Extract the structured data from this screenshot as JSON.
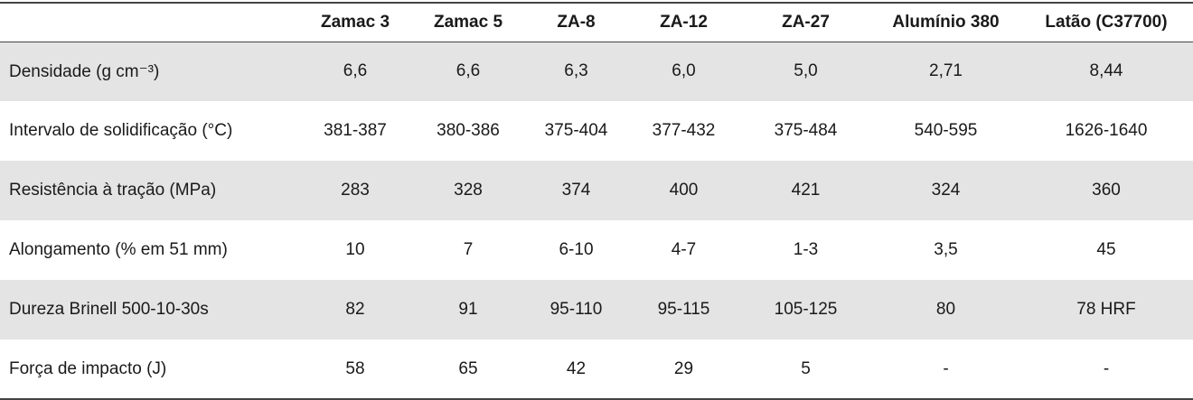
{
  "table": {
    "columns": [
      "Zamac 3",
      "Zamac 5",
      "ZA-8",
      "ZA-12",
      "ZA-27",
      "Alumínio 380",
      "Latão (C37700)"
    ],
    "rows": [
      {
        "label": "Densidade (g cm⁻³)",
        "values": [
          "6,6",
          "6,6",
          "6,3",
          "6,0",
          "5,0",
          "2,71",
          "8,44"
        ]
      },
      {
        "label": "Intervalo de solidificação (°C)",
        "values": [
          "381-387",
          "380-386",
          "375-404",
          "377-432",
          "375-484",
          "540-595",
          "1626-1640"
        ]
      },
      {
        "label": "Resistência à tração (MPa)",
        "values": [
          "283",
          "328",
          "374",
          "400",
          "421",
          "324",
          "360"
        ]
      },
      {
        "label": "Alongamento (% em 51 mm)",
        "values": [
          "10",
          "7",
          "6-10",
          "4-7",
          "1-3",
          "3,5",
          "45"
        ]
      },
      {
        "label": "Dureza Brinell 500-10-30s",
        "values": [
          "82",
          "91",
          "95-110",
          "95-115",
          "105-125",
          "80",
          "78 HRF"
        ]
      },
      {
        "label": "Força de impacto (J)",
        "values": [
          "58",
          "65",
          "42",
          "29",
          "5",
          "-",
          "-"
        ]
      }
    ]
  }
}
